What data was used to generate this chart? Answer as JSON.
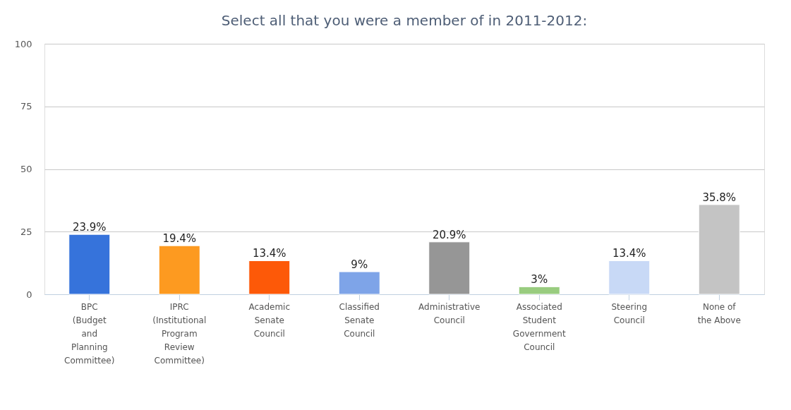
{
  "chart_data": {
    "type": "bar",
    "title": "Select all that you were a member of in 2011-2012:",
    "categories": [
      "BPC (Budget and Planning Committee)",
      "IPRC (Institutional Program Review Committee)",
      "Academic Senate Council",
      "Classified Senate Council",
      "Administrative Council",
      "Associated Student Government Council",
      "Steering Council",
      "None of the Above"
    ],
    "values": [
      23.9,
      19.4,
      13.4,
      9,
      20.9,
      3,
      13.4,
      35.8
    ],
    "value_labels": [
      "23.9%",
      "19.4%",
      "13.4%",
      "9%",
      "20.9%",
      "3%",
      "13.4%",
      "35.8%"
    ],
    "colors": [
      "#3673db",
      "#fd9a20",
      "#fd5908",
      "#7ea4e8",
      "#969696",
      "#99cc7f",
      "#c8d9f6",
      "#c4c4c4"
    ],
    "ylim": [
      0,
      100
    ],
    "yticks": [
      0,
      25,
      50,
      75,
      100
    ],
    "grid": "y"
  }
}
